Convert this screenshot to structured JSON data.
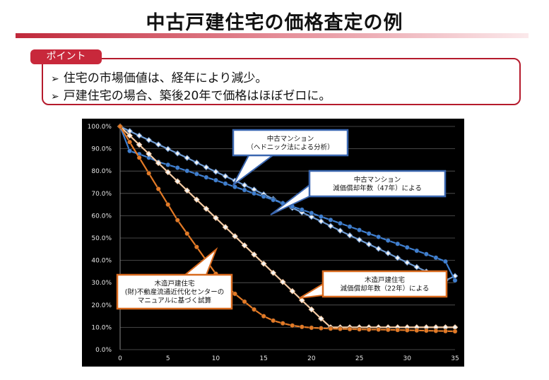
{
  "header": {
    "title": "中古戸建住宅の価格査定の例"
  },
  "point": {
    "tab_label": "ポイント",
    "bullet_mark": "➢",
    "bullets": [
      "住宅の市場価値は、経年により減少。",
      "戸建住宅の場合、築後20年で価格はほぼゼロに。"
    ]
  },
  "chart_data": {
    "type": "line",
    "title": "",
    "xlabel": "",
    "ylabel": "",
    "xlim": [
      0,
      35
    ],
    "ylim": [
      0,
      100
    ],
    "x_ticks": [
      0,
      5,
      10,
      15,
      20,
      25,
      30,
      35
    ],
    "y_ticks": [
      0,
      10,
      20,
      30,
      40,
      50,
      60,
      70,
      80,
      90,
      100
    ],
    "y_tick_labels": [
      "0.0%",
      "10.0%",
      "20.0%",
      "30.0%",
      "40.0%",
      "50.0%",
      "60.0%",
      "70.0%",
      "80.0%",
      "90.0%",
      "100.0%"
    ],
    "grid": true,
    "background": "#000000",
    "x": [
      0,
      1,
      2,
      3,
      4,
      5,
      6,
      7,
      8,
      9,
      10,
      11,
      12,
      13,
      14,
      15,
      16,
      17,
      18,
      19,
      20,
      21,
      22,
      23,
      24,
      25,
      26,
      27,
      28,
      29,
      30,
      31,
      32,
      33,
      34,
      35
    ],
    "series": [
      {
        "color": "#6f9bd2",
        "marker": "diamond",
        "values": [
          100,
          97.9,
          95.9,
          93.9,
          91.9,
          89.9,
          87.9,
          85.9,
          83.8,
          81.7,
          79.7,
          77.7,
          75.7,
          73.7,
          71.7,
          69.6,
          67.5,
          65.5,
          63.5,
          61.5,
          59.5,
          57.5,
          55.4,
          53.3,
          51.2,
          49.2,
          47.2,
          45.2,
          43.2,
          41.1,
          39.0,
          37.0,
          35.0,
          33.0,
          31.0,
          33.0
        ]
      },
      {
        "color": "#3f7fd0",
        "marker": "circle",
        "values": [
          100,
          89.0,
          87.6,
          86.0,
          84.1,
          82.8,
          81.5,
          80.1,
          78.7,
          77.2,
          75.9,
          74.4,
          72.9,
          71.5,
          70.0,
          68.6,
          67.1,
          65.6,
          64.1,
          62.7,
          61.2,
          59.6,
          58.1,
          56.6,
          55.1,
          53.6,
          52.0,
          50.5,
          48.9,
          47.4,
          45.8,
          44.3,
          42.8,
          41.2,
          39.5,
          31.0
        ]
      },
      {
        "color": "#f3c9a2",
        "marker": "diamond",
        "values": [
          100,
          95.9,
          91.8,
          87.7,
          83.6,
          79.5,
          75.4,
          71.3,
          67.2,
          63.1,
          59.0,
          54.9,
          50.8,
          46.7,
          42.6,
          38.5,
          34.4,
          30.3,
          26.2,
          22.1,
          18.0,
          13.9,
          10.0,
          10.0,
          10.0,
          10.0,
          10.0,
          10.0,
          10.0,
          10.0,
          10.0,
          10.0,
          10.0,
          10.0,
          10.0,
          10.0
        ]
      },
      {
        "color": "#e37a26",
        "marker": "circle",
        "values": [
          100,
          93.0,
          86.0,
          79.0,
          72.0,
          65.0,
          58.0,
          52.0,
          46.0,
          40.0,
          34.0,
          29.0,
          25.0,
          21.5,
          18.0,
          15.0,
          13.0,
          11.8,
          10.8,
          10.2,
          9.8,
          9.6,
          9.4,
          9.3,
          9.2,
          9.1,
          9.0,
          9.0,
          8.9,
          8.8,
          8.7,
          8.6,
          8.5,
          8.4,
          8.3,
          8.2
        ]
      }
    ],
    "callouts": [
      {
        "lines": [
          "中古マンション",
          "（ヘドニック法による分析）"
        ]
      },
      {
        "lines": [
          "中古マンション",
          "減価償却年数（47年）による"
        ]
      },
      {
        "lines": [
          "木造戸建住宅",
          "(財)不動産流通近代化センターの",
          "マニュアルに基づく試算"
        ]
      },
      {
        "lines": [
          "木造戸建住宅",
          "減価償却年数（22年）による"
        ]
      }
    ]
  }
}
